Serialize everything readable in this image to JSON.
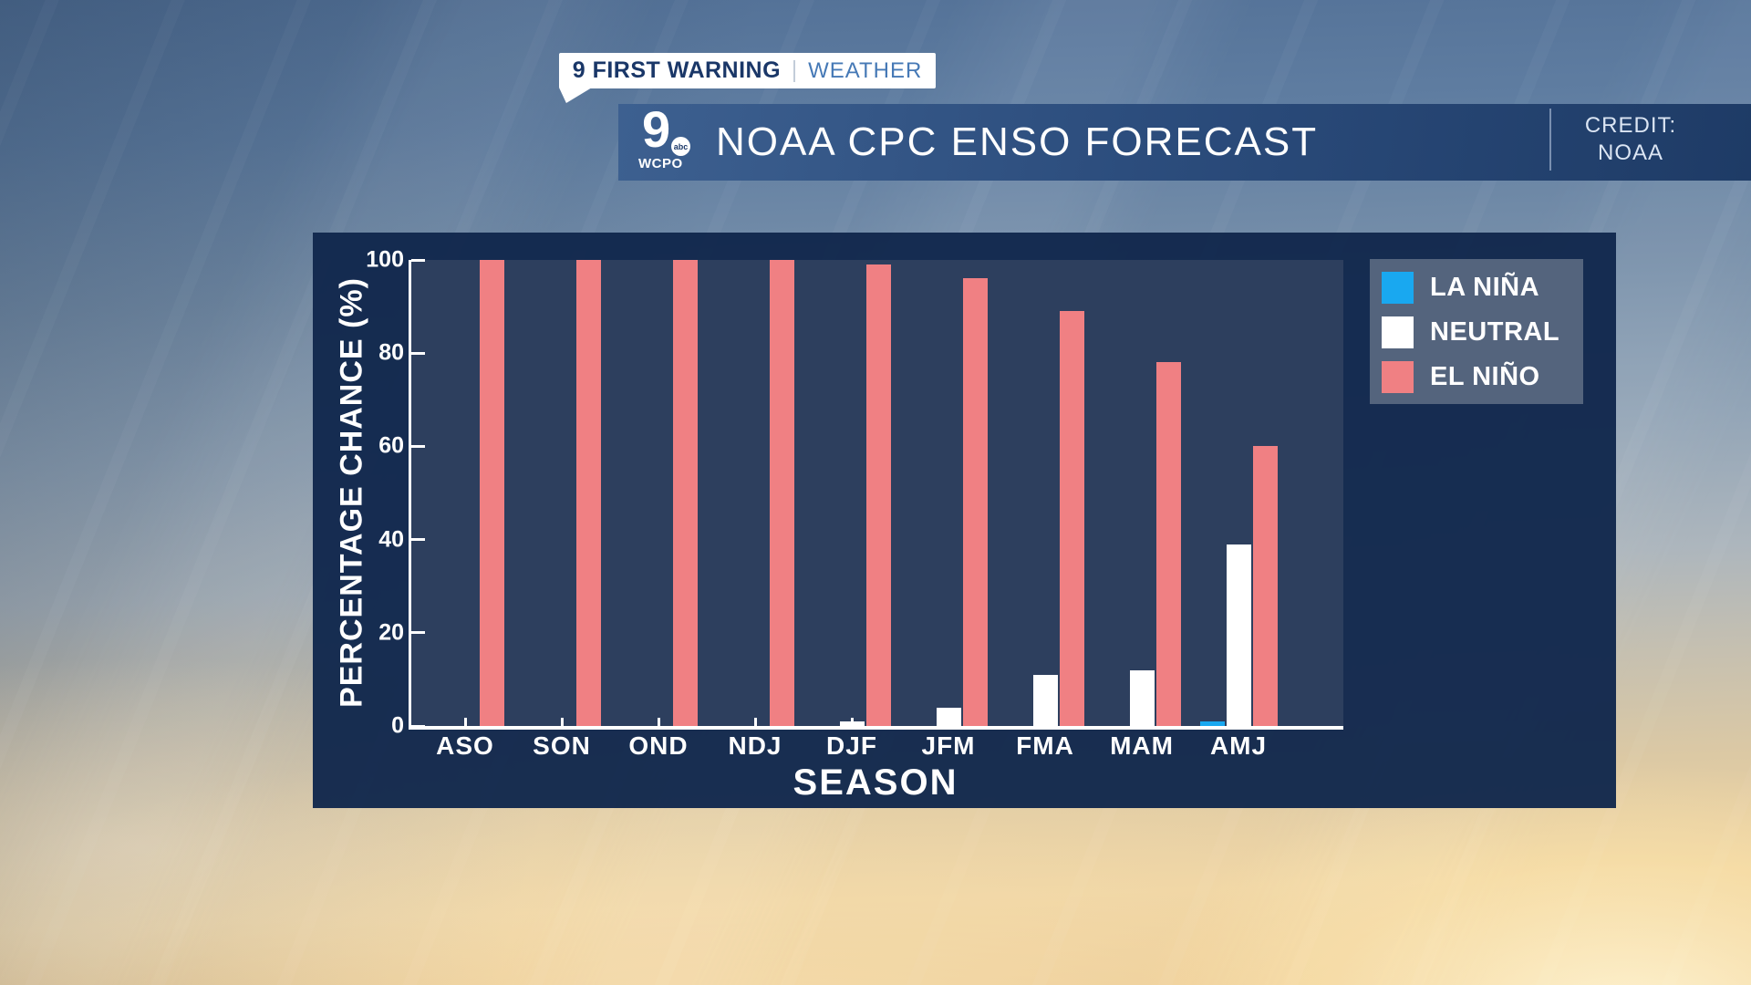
{
  "badge": {
    "brand": "9 FIRST WARNING",
    "section": "WEATHER"
  },
  "title_bar": {
    "title": "NOAA CPC ENSO FORECAST",
    "credit_label": "CREDIT:",
    "credit_value": "NOAA",
    "logo": {
      "number": "9",
      "network": "abc",
      "station": "WCPO"
    }
  },
  "chart_data": {
    "type": "bar",
    "title": "NOAA CPC ENSO FORECAST",
    "categories": [
      "ASO",
      "SON",
      "OND",
      "NDJ",
      "DJF",
      "JFM",
      "FMA",
      "MAM",
      "AMJ"
    ],
    "series": [
      {
        "name": "LA NIÑA",
        "color": "#19a8f0",
        "values": [
          0,
          0,
          0,
          0,
          0,
          0,
          0,
          0,
          1
        ]
      },
      {
        "name": "NEUTRAL",
        "color": "#ffffff",
        "values": [
          0,
          0,
          0,
          0,
          1,
          4,
          11,
          12,
          39
        ]
      },
      {
        "name": "EL NIÑO",
        "color": "#f08083",
        "values": [
          100,
          100,
          100,
          100,
          99,
          96,
          89,
          78,
          60
        ]
      }
    ],
    "xlabel": "SEASON",
    "ylabel": "PERCENTAGE CHANCE (%)",
    "ylim": [
      0,
      100
    ],
    "yticks": [
      0,
      20,
      40,
      60,
      80,
      100
    ],
    "grid": false,
    "legend_position": "upper right"
  },
  "colors": {
    "panel": "#12284d",
    "plot_background": "#2d3f5e",
    "axis": "#ffffff",
    "la_nina": "#19a8f0",
    "neutral": "#ffffff",
    "el_nino": "#f08083",
    "badge_brand_text": "#1a3768",
    "badge_section_text": "#4679b6",
    "titlebar_gradient_start": "#3d6090",
    "titlebar_gradient_end": "#1e3b66"
  }
}
